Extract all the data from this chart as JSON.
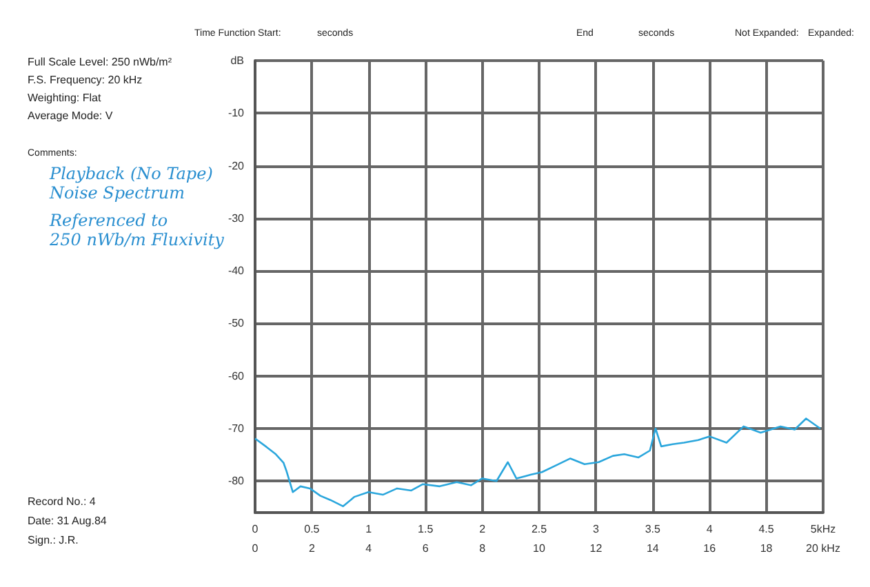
{
  "chart_data": {
    "type": "line",
    "annotations": [
      "Time Function Start:",
      "seconds",
      "End",
      "seconds",
      "Not Expanded:",
      "Expanded:",
      "Full Scale Level: 250 nWb/m²",
      "F.S. Frequency: 20 kHz",
      "Weighting: Flat",
      "Average Mode: V",
      "Comments:",
      "Playback (No Tape)",
      "Noise Spectrum",
      "Referenced to",
      "250 nWb/m Fluxivity",
      "Record No.: 4",
      "Date: 31 Aug.84",
      "Sign.: J.R."
    ],
    "series": [
      {
        "color": "#2aa6dc",
        "x": [
          0,
          0.4,
          0.73,
          1.0,
          1.1,
          1.33,
          1.6,
          1.93,
          2.3,
          2.65,
          3.1,
          3.5,
          3.99,
          4.5,
          5.0,
          5.5,
          5.9,
          6.5,
          7.1,
          7.6,
          8.0,
          8.5,
          8.9,
          9.2,
          9.7,
          10.1,
          10.6,
          11.1,
          11.6,
          12.1,
          12.6,
          13.0,
          13.5,
          13.9,
          14.1,
          14.3,
          14.7,
          15.1,
          15.6,
          16.0,
          16.6,
          17.2,
          17.8,
          18.5,
          19.0,
          19.4,
          19.9
        ],
        "values": [
          -71.9,
          -73.5,
          -74.9,
          -76.5,
          -78,
          -82.1,
          -81,
          -81.4,
          -82.8,
          -83.6,
          -84.8,
          -83,
          -82.1,
          -82.6,
          -81.4,
          -81.8,
          -80.6,
          -81,
          -80.2,
          -80.8,
          -79.5,
          -80,
          -76.4,
          -79.5,
          -78.8,
          -78.3,
          -77,
          -75.7,
          -76.8,
          -76.4,
          -75.2,
          -74.9,
          -75.5,
          -74.2,
          -70,
          -73.4,
          -73,
          -72.7,
          -72.2,
          -71.5,
          -72.7,
          -69.6,
          -70.8,
          -69.6,
          -70.2,
          -68.1,
          -70
        ]
      }
    ],
    "xlim": [
      0,
      20
    ],
    "xticks": [
      0,
      2,
      4,
      6,
      8,
      10,
      12,
      14,
      16,
      18,
      {
        "value": 20,
        "label": "20 kHz"
      }
    ],
    "x2lim": [
      0,
      5
    ],
    "x2ticks": [
      0,
      0.5,
      1,
      1.5,
      2,
      2.5,
      3,
      3.5,
      4,
      4.5,
      {
        "value": 5,
        "label": "5kHz"
      }
    ],
    "ylim": [
      -86,
      0
    ],
    "yticks": [
      {
        "value": 0,
        "label": "dB"
      },
      -10,
      -20,
      -30,
      -40,
      -50,
      -60,
      -70,
      -80
    ],
    "grid": true,
    "marker": "none",
    "line_style": "solid"
  }
}
